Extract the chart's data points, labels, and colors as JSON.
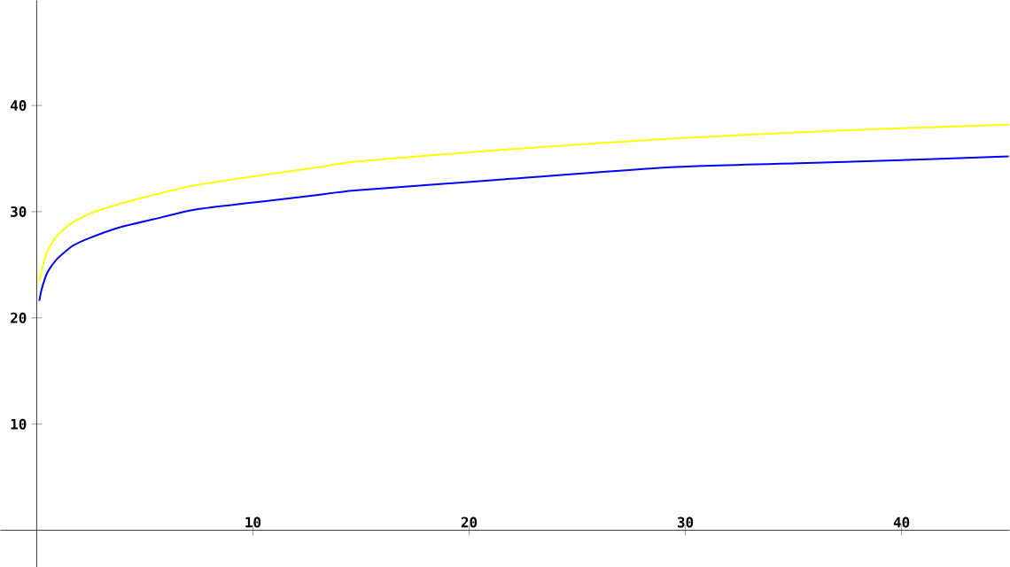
{
  "chart_data": {
    "type": "line",
    "xlim": [
      -1.68,
      45.0
    ],
    "ylim": [
      -3.45,
      49.9
    ],
    "xticks": [
      10,
      20,
      30,
      40
    ],
    "yticks": [
      10,
      20,
      30,
      40
    ],
    "grid": false,
    "marker": "none",
    "line_style": "solid",
    "series": [
      {
        "color": "#0000ff",
        "x": [
          0.12,
          0.23,
          0.5,
          0.92,
          1.6,
          2.42,
          3.79,
          5.43,
          7.34,
          10.6,
          13.1,
          14.7,
          21.3,
          29.5,
          37.7,
          44.96
        ],
        "values": [
          21.6,
          22.7,
          24.3,
          25.5,
          26.7,
          27.5,
          28.5,
          29.3,
          30.2,
          31.0,
          31.6,
          32.0,
          33.0,
          34.2,
          34.7,
          35.2
        ]
      },
      {
        "color": "#ffff00",
        "x": [
          0.12,
          0.28,
          0.5,
          0.92,
          1.6,
          2.42,
          3.79,
          5.43,
          7.34,
          10.6,
          13.1,
          14.7,
          21.3,
          29.5,
          37.7,
          44.96
        ],
        "values": [
          23.4,
          24.9,
          26.3,
          27.7,
          28.9,
          29.8,
          30.7,
          31.6,
          32.5,
          33.5,
          34.2,
          34.7,
          35.8,
          36.9,
          37.7,
          38.2
        ]
      }
    ]
  }
}
